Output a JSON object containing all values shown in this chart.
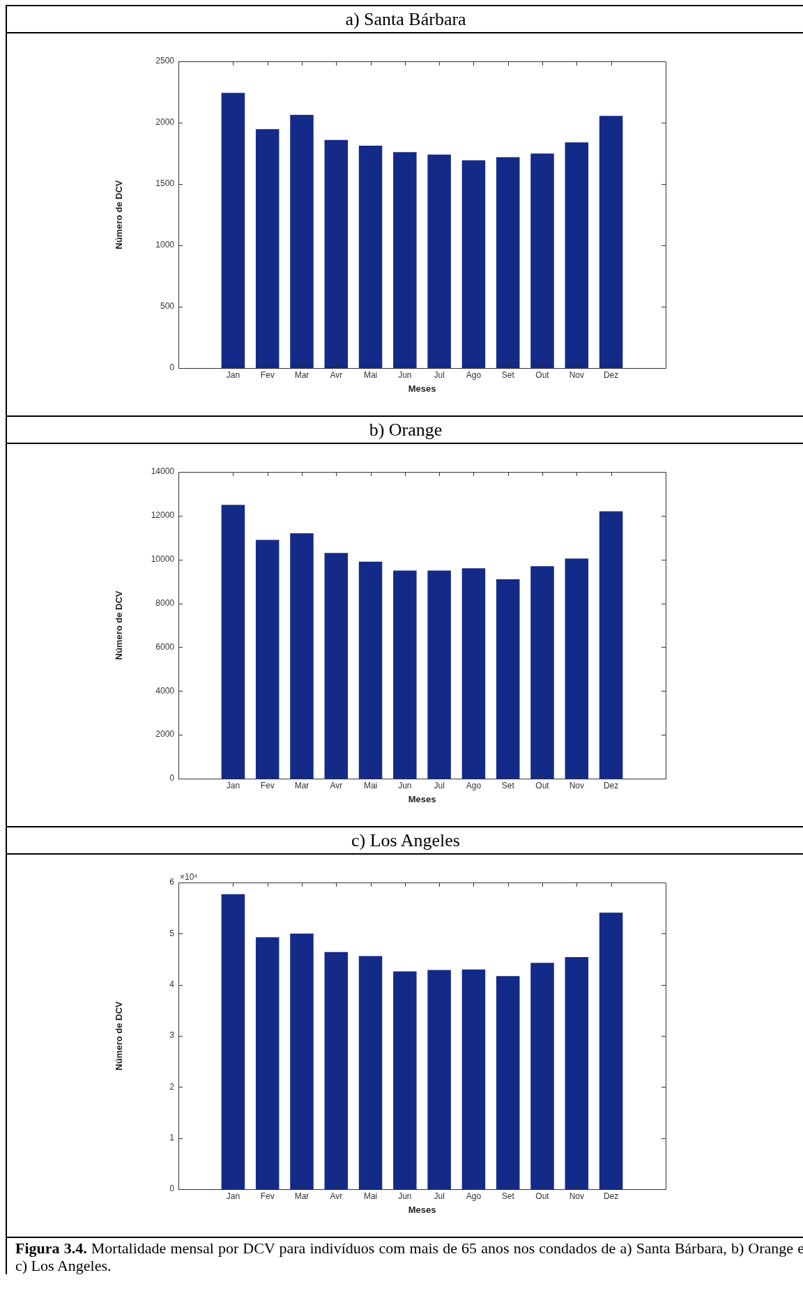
{
  "chart_data": [
    {
      "type": "bar",
      "title": "a) Santa Bárbara",
      "xlabel": "Meses",
      "ylabel": "Número de DCV",
      "categories": [
        "Jan",
        "Fev",
        "Mar",
        "Avr",
        "Mai",
        "Jun",
        "Jul",
        "Ago",
        "Set",
        "Out",
        "Nov",
        "Dez"
      ],
      "values": [
        2243,
        1947,
        2064,
        1859,
        1813,
        1760,
        1740,
        1693,
        1719,
        1749,
        1839,
        2056
      ],
      "color": "#142a88",
      "ylim": [
        0,
        2500
      ],
      "yticks": [
        0,
        500,
        1000,
        1500,
        2000,
        2500
      ],
      "grid": false
    },
    {
      "type": "bar",
      "title": "b) Orange",
      "xlabel": "Meses",
      "ylabel": "Número de DCV",
      "categories": [
        "Jan",
        "Fev",
        "Mar",
        "Avr",
        "Mai",
        "Jun",
        "Jul",
        "Ago",
        "Set",
        "Out",
        "Nov",
        "Dez"
      ],
      "values": [
        12500,
        10900,
        11200,
        10300,
        9900,
        9500,
        9500,
        9600,
        9100,
        9700,
        10050,
        12200
      ],
      "color": "#142a88",
      "ylim": [
        0,
        14000
      ],
      "yticks": [
        0,
        2000,
        4000,
        6000,
        8000,
        10000,
        12000,
        14000
      ],
      "grid": false
    },
    {
      "type": "bar",
      "title": "c) Los Angeles",
      "xlabel": "Meses",
      "ylabel": "Número de DCV",
      "categories": [
        "Jan",
        "Fev",
        "Mar",
        "Avr",
        "Mai",
        "Jun",
        "Jul",
        "Ago",
        "Set",
        "Out",
        "Nov",
        "Dez"
      ],
      "values": [
        5.77,
        4.93,
        5.0,
        4.64,
        4.56,
        4.26,
        4.29,
        4.3,
        4.17,
        4.43,
        4.54,
        5.41
      ],
      "color": "#142a88",
      "ylim": [
        0,
        6
      ],
      "yticks": [
        0,
        1,
        2,
        3,
        4,
        5,
        6
      ],
      "grid": false,
      "annotations": [
        "×10⁴",
        "Figura 3.4.",
        "Mortalidade mensal por DCV para indivíduos com mais de 65 anos nos condados de a) Santa Bárbara, b) Orange e c) Los Angeles."
      ]
    }
  ]
}
